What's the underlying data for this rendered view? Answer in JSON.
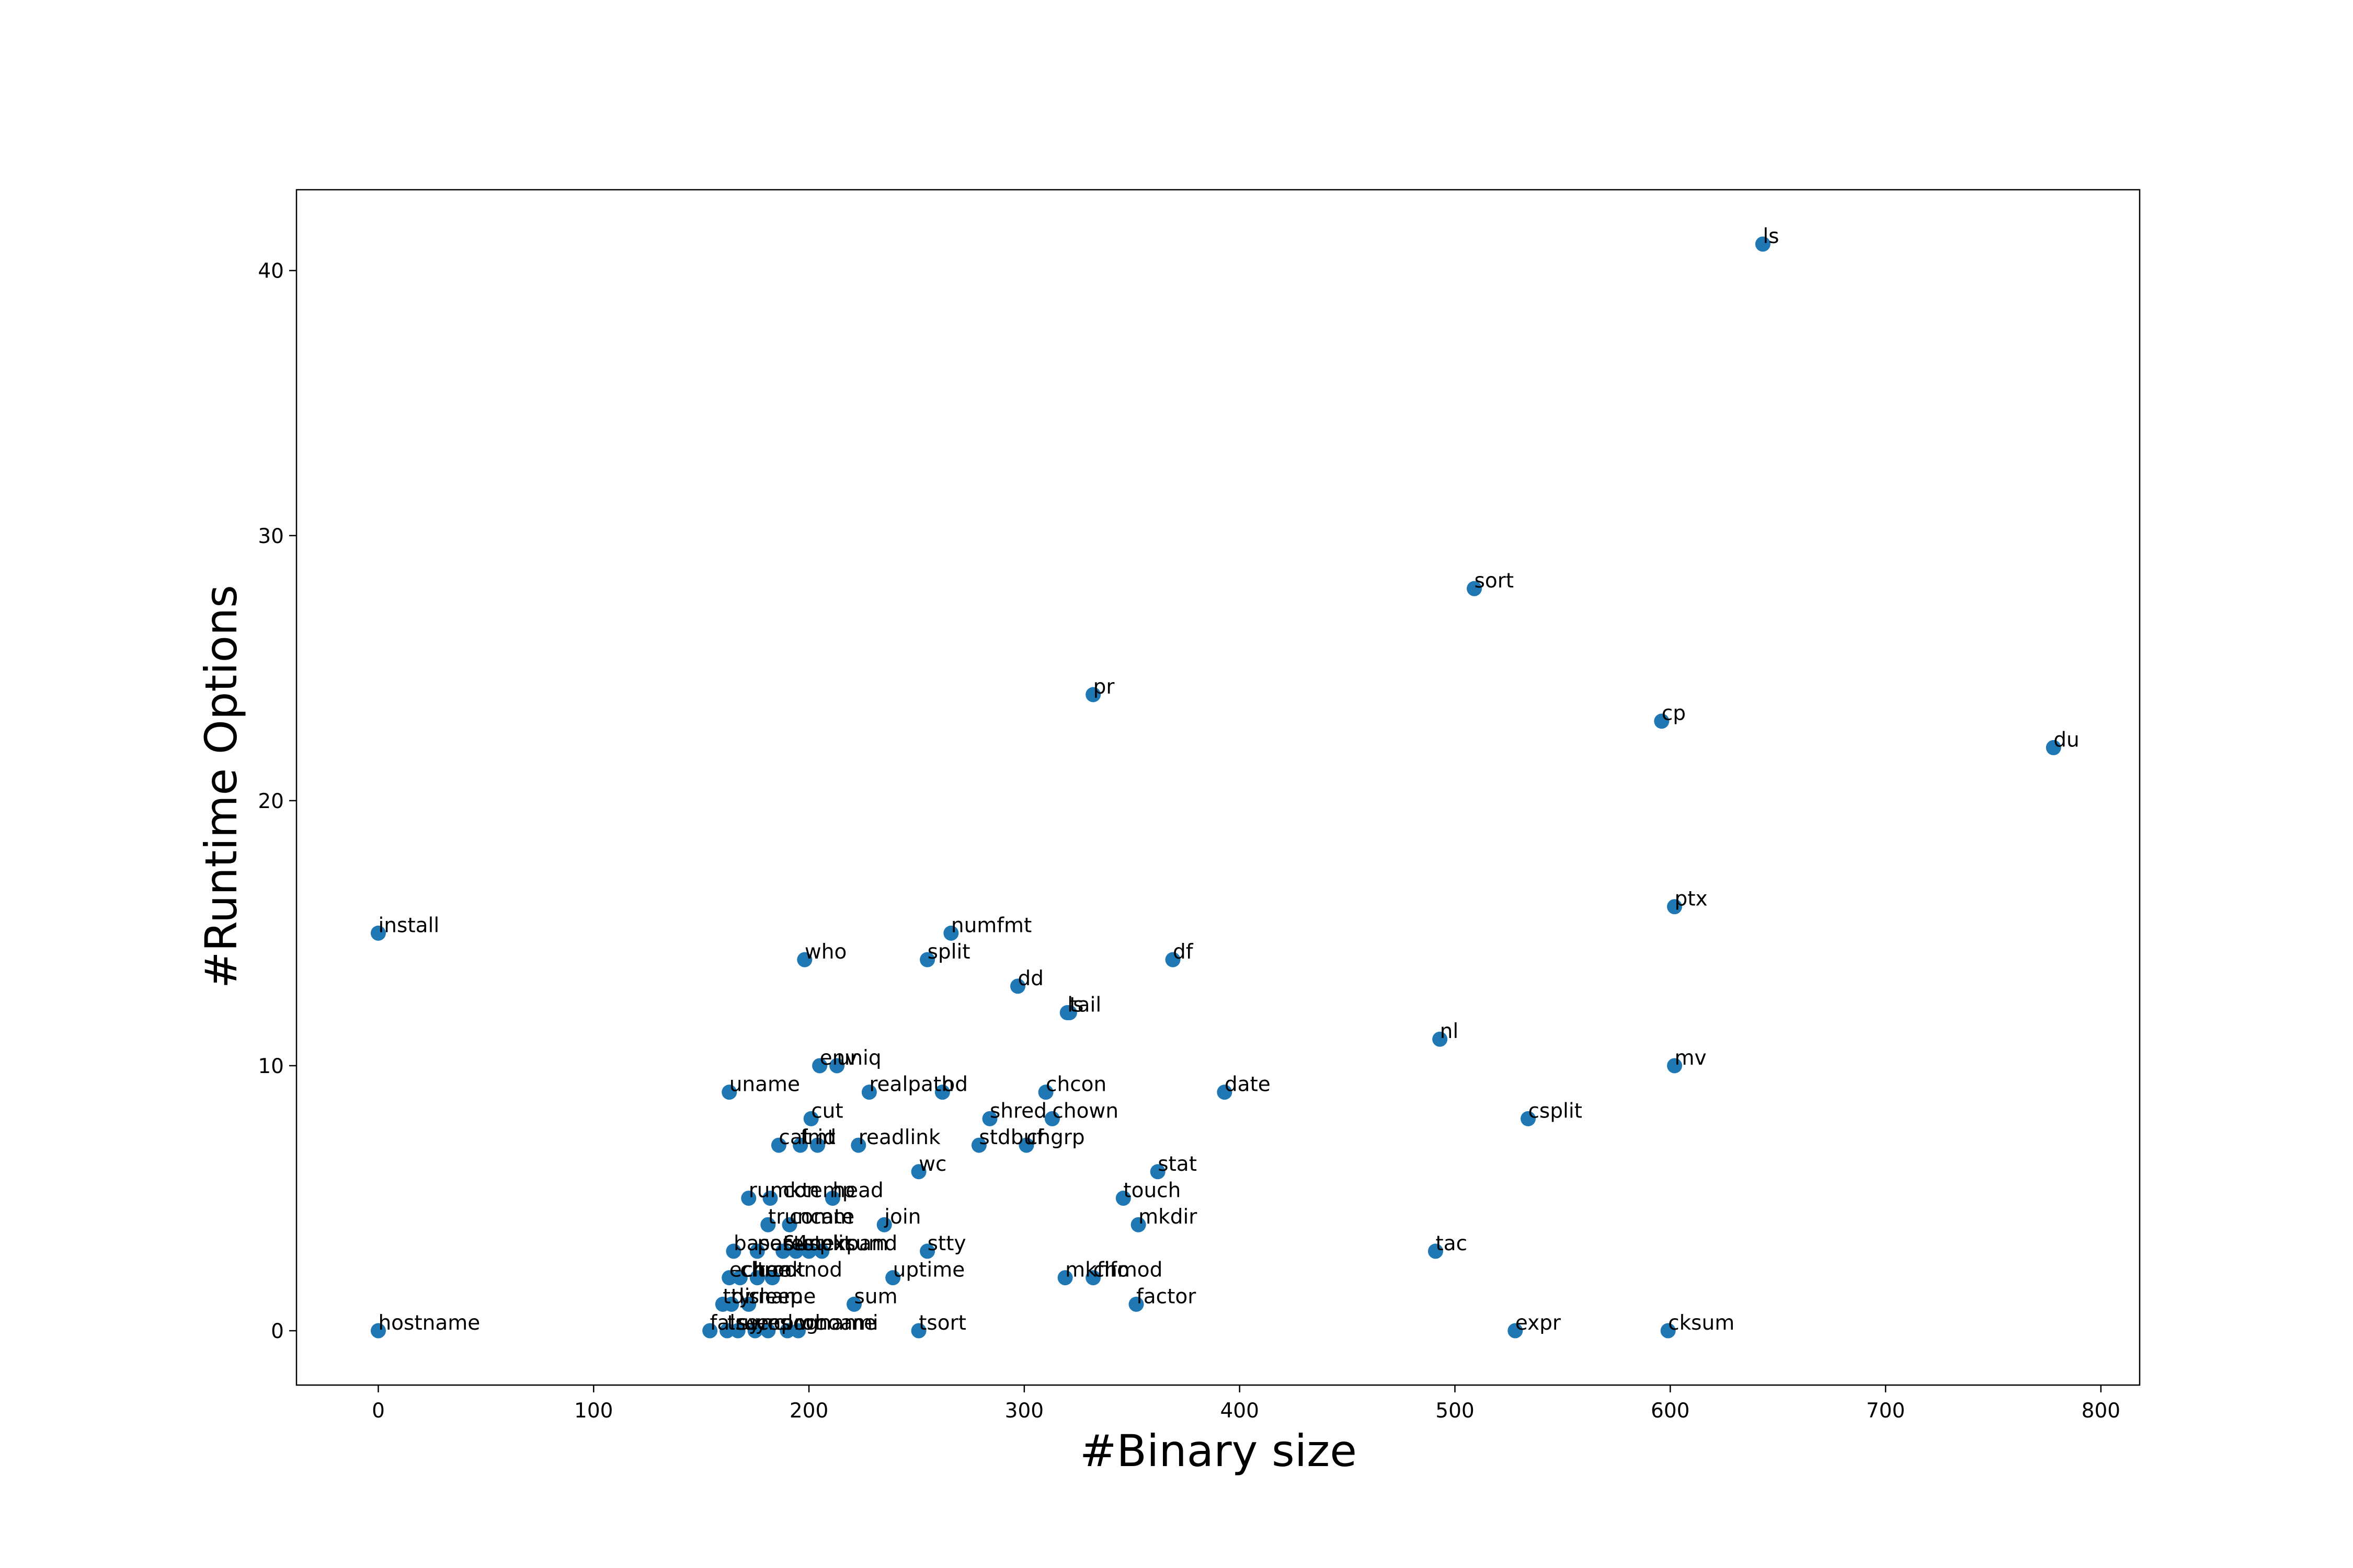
{
  "chart_data": {
    "type": "scatter",
    "title": "",
    "xlabel": "#Binary size",
    "ylabel": "#Runtime Options",
    "xlim": [
      -38,
      818
    ],
    "ylim": [
      -2.05,
      43.05
    ],
    "xticks": [
      0,
      100,
      200,
      300,
      400,
      500,
      600,
      700,
      800
    ],
    "yticks": [
      0,
      10,
      20,
      30,
      40
    ],
    "grid": false,
    "legend": "none",
    "marker_color": "#1f77b4",
    "points": [
      {
        "label": "ls",
        "x": 643,
        "y": 41
      },
      {
        "label": "sort",
        "x": 509,
        "y": 28
      },
      {
        "label": "pr",
        "x": 332,
        "y": 24
      },
      {
        "label": "cp",
        "x": 596,
        "y": 23
      },
      {
        "label": "du",
        "x": 778,
        "y": 22
      },
      {
        "label": "ptx",
        "x": 602,
        "y": 16
      },
      {
        "label": "install",
        "x": 0,
        "y": 15
      },
      {
        "label": "numfmt",
        "x": 266,
        "y": 15
      },
      {
        "label": "who",
        "x": 198,
        "y": 14
      },
      {
        "label": "split",
        "x": 255,
        "y": 14
      },
      {
        "label": "df",
        "x": 369,
        "y": 14
      },
      {
        "label": "dd",
        "x": 297,
        "y": 13
      },
      {
        "label": "ls",
        "x": 320,
        "y": 12
      },
      {
        "label": "tail",
        "x": 321,
        "y": 12
      },
      {
        "label": "nl",
        "x": 493,
        "y": 11
      },
      {
        "label": "env",
        "x": 205,
        "y": 10
      },
      {
        "label": "uniq",
        "x": 213,
        "y": 10
      },
      {
        "label": "mv",
        "x": 602,
        "y": 10
      },
      {
        "label": "uname",
        "x": 163,
        "y": 9
      },
      {
        "label": "realpath",
        "x": 228,
        "y": 9
      },
      {
        "label": "od",
        "x": 262,
        "y": 9
      },
      {
        "label": "chcon",
        "x": 310,
        "y": 9
      },
      {
        "label": "date",
        "x": 393,
        "y": 9
      },
      {
        "label": "cut",
        "x": 201,
        "y": 8
      },
      {
        "label": "shred",
        "x": 284,
        "y": 8
      },
      {
        "label": "chown",
        "x": 313,
        "y": 8
      },
      {
        "label": "csplit",
        "x": 534,
        "y": 8
      },
      {
        "label": "cat",
        "x": 186,
        "y": 7
      },
      {
        "label": "fmt",
        "x": 196,
        "y": 7
      },
      {
        "label": "id",
        "x": 204,
        "y": 7
      },
      {
        "label": "readlink",
        "x": 223,
        "y": 7
      },
      {
        "label": "stdbuf",
        "x": 279,
        "y": 7
      },
      {
        "label": "chgrp",
        "x": 301,
        "y": 7
      },
      {
        "label": "wc",
        "x": 251,
        "y": 6
      },
      {
        "label": "stat",
        "x": 362,
        "y": 6
      },
      {
        "label": "runcon",
        "x": 172,
        "y": 5
      },
      {
        "label": "mktemp",
        "x": 182,
        "y": 5
      },
      {
        "label": "head",
        "x": 211,
        "y": 5
      },
      {
        "label": "touch",
        "x": 346,
        "y": 5
      },
      {
        "label": "truncate",
        "x": 181,
        "y": 4
      },
      {
        "label": "comm",
        "x": 191,
        "y": 4
      },
      {
        "label": "join",
        "x": 235,
        "y": 4
      },
      {
        "label": "mkdir",
        "x": 353,
        "y": 4
      },
      {
        "label": "base64",
        "x": 165,
        "y": 3
      },
      {
        "label": "stty",
        "x": 255,
        "y": 3
      },
      {
        "label": "tac",
        "x": 491,
        "y": 3
      },
      {
        "label": "paste",
        "x": 176,
        "y": 3
      },
      {
        "label": "test",
        "x": 188,
        "y": 3
      },
      {
        "label": "unexpand",
        "x": 194,
        "y": 3
      },
      {
        "label": "split",
        "x": 200,
        "y": 3
      },
      {
        "label": "cksum",
        "x": 206,
        "y": 3
      },
      {
        "label": "mkfifo",
        "x": 319,
        "y": 2
      },
      {
        "label": "chmod",
        "x": 332,
        "y": 2
      },
      {
        "label": "uptime",
        "x": 239,
        "y": 2
      },
      {
        "label": "echo",
        "x": 163,
        "y": 2
      },
      {
        "label": "chroot",
        "x": 168,
        "y": 2
      },
      {
        "label": "tee",
        "x": 176,
        "y": 2
      },
      {
        "label": "mknod",
        "x": 183,
        "y": 2
      },
      {
        "label": "factor",
        "x": 352,
        "y": 1
      },
      {
        "label": "sum",
        "x": 221,
        "y": 1
      },
      {
        "label": "tty",
        "x": 160,
        "y": 1
      },
      {
        "label": "dirname",
        "x": 164,
        "y": 1
      },
      {
        "label": "sleep",
        "x": 172,
        "y": 1
      },
      {
        "label": "hostname",
        "x": 0,
        "y": 0
      },
      {
        "label": "tsort",
        "x": 251,
        "y": 0
      },
      {
        "label": "expr",
        "x": 528,
        "y": 0
      },
      {
        "label": "cksum",
        "x": 599,
        "y": 0
      },
      {
        "label": "false",
        "x": 154,
        "y": 0
      },
      {
        "label": "true",
        "x": 162,
        "y": 0
      },
      {
        "label": "sync",
        "x": 167,
        "y": 0
      },
      {
        "label": "yes",
        "x": 175,
        "y": 0
      },
      {
        "label": "nproc",
        "x": 181,
        "y": 0
      },
      {
        "label": "logname",
        "x": 190,
        "y": 0
      },
      {
        "label": "whoami",
        "x": 195,
        "y": 0
      }
    ]
  }
}
